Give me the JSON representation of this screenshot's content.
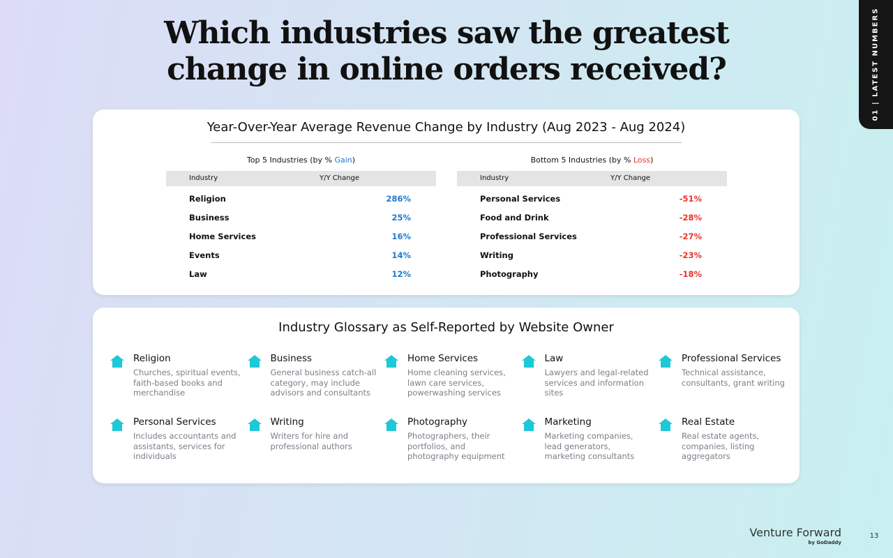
{
  "header": {
    "title": "Which industries saw the greatest change in online orders received?",
    "tab": "01 | LATEST NUMBERS"
  },
  "table_card": {
    "title": "Year-Over-Year Average Revenue Change by Industry (Aug 2023 - Aug 2024)",
    "top": {
      "heading_prefix": "Top 5 Industries (by % ",
      "heading_highlight": "Gain",
      "heading_suffix": ")",
      "columns": [
        "Industry",
        "Y/Y Change"
      ],
      "rows": [
        [
          "Religion",
          "286%"
        ],
        [
          "Business",
          "25%"
        ],
        [
          "Home Services",
          "16%"
        ],
        [
          "Events",
          "14%"
        ],
        [
          "Law",
          "12%"
        ]
      ]
    },
    "bottom": {
      "heading_prefix": "Bottom 5 Industries (by % ",
      "heading_highlight": "Loss",
      "heading_suffix": ")",
      "columns": [
        "Industry",
        "Y/Y Change"
      ],
      "rows": [
        [
          "Personal Services",
          "-51%"
        ],
        [
          "Food and Drink",
          "-28%"
        ],
        [
          "Professional Services",
          "-27%"
        ],
        [
          "Writing",
          "-23%"
        ],
        [
          "Photography",
          "-18%"
        ]
      ]
    }
  },
  "glossary": {
    "title": "Industry Glossary as Self-Reported by Website Owner",
    "items": [
      {
        "name": "Religion",
        "description": "Churches, spiritual events, faith-based books and merchandise"
      },
      {
        "name": "Business",
        "description": "General business catch-all category, may include advisors and consultants"
      },
      {
        "name": "Home Services",
        "description": "Home cleaning services, lawn care services, powerwashing services"
      },
      {
        "name": "Law",
        "description": "Lawyers and legal-related services and information sites"
      },
      {
        "name": "Professional Services",
        "description": "Technical assistance, consultants, grant writing"
      },
      {
        "name": "Personal Services",
        "description": "Includes accountants and assistants, services for individuals"
      },
      {
        "name": "Writing",
        "description": "Writers for hire and professional authors"
      },
      {
        "name": "Photography",
        "description": "Photographers, their portfolios, and photography equipment"
      },
      {
        "name": "Marketing",
        "description": "Marketing companies, lead generators, marketing consultants"
      },
      {
        "name": "Real Estate",
        "description": "Real estate agents, companies, listing aggregators"
      }
    ]
  },
  "footer": {
    "brand": "Venture Forward",
    "byline": "by GoDaddy",
    "page": "13"
  }
}
